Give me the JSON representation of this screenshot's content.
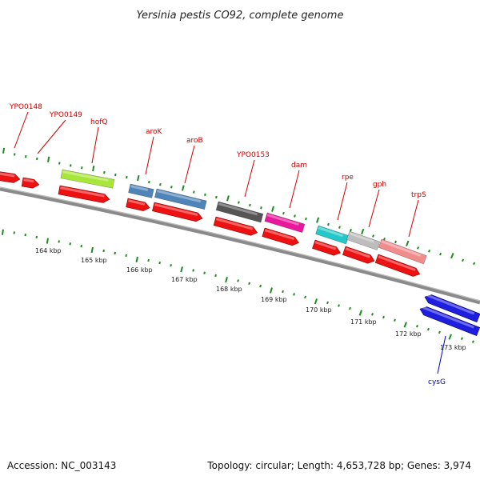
{
  "title": "Yersinia pestis CO92, complete genome",
  "footer": {
    "accession": "Accession: NC_003143",
    "topology": "Topology: circular; Length: 4,653,728 bp; Genes: 3,974"
  },
  "colors": {
    "backbone": "#8a8a8a",
    "tick": "#1f8a1f",
    "cds_red": "#ee1111",
    "label_red": "#cc0000",
    "label_blue": "#0000cc",
    "hofQ": "#a8e63a",
    "aroK": "#4f84b8",
    "aroB": "#4f84b8",
    "YPO0153": "#555555",
    "dam": "#e8189a",
    "rpe": "#23c8c8",
    "gph": "#bdbdbd",
    "trpS": "#f08c8c",
    "cysG": "#1e1ee0"
  },
  "gene_labels": [
    {
      "id": "YPO0148",
      "text": "YPO0148",
      "color": "red"
    },
    {
      "id": "YPO0149",
      "text": "YPO0149",
      "color": "red"
    },
    {
      "id": "hofQ",
      "text": "hofQ",
      "color": "red"
    },
    {
      "id": "aroK",
      "text": "aroK",
      "color": "red"
    },
    {
      "id": "aroB",
      "text": "aroB",
      "color": "red"
    },
    {
      "id": "YPO0153",
      "text": "YPO0153",
      "color": "red"
    },
    {
      "id": "dam",
      "text": "dam",
      "color": "red"
    },
    {
      "id": "rpe",
      "text": "rpe",
      "color": "red"
    },
    {
      "id": "gph",
      "text": "gph",
      "color": "red"
    },
    {
      "id": "trpS",
      "text": "trpS",
      "color": "red"
    },
    {
      "id": "cysG",
      "text": "cysG",
      "color": "blue"
    }
  ],
  "kbp_labels": [
    "164 kbp",
    "165 kbp",
    "166 kbp",
    "167 kbp",
    "168 kbp",
    "169 kbp",
    "170 kbp",
    "171 kbp",
    "172 kbp",
    "173 kbp"
  ]
}
